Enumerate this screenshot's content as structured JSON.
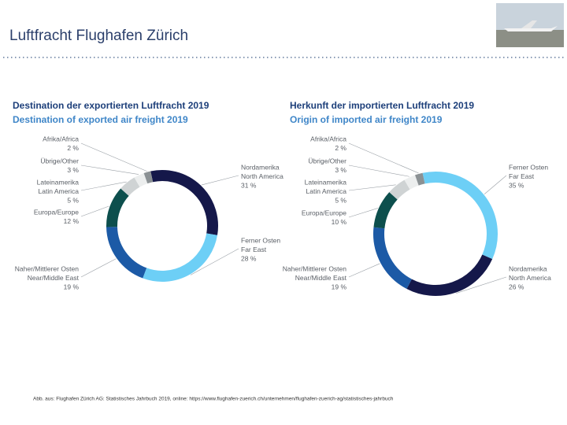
{
  "title": "Luftfracht Flughafen Zürich",
  "source": "Abb. aus: Flughafen Zürich AG: Statistisches Jahrbuch 2019, online: https://www.flughafen-zuerich.ch/unternehmen/flughafen-zuerich-ag/statistisches-jahrbuch",
  "chart_data": [
    {
      "type": "donut",
      "title": "Destination der exportierten Luftfracht 2019",
      "subtitle": "Destination of exported air freight 2019",
      "categories": [
        [
          "Nordamerika",
          "North America"
        ],
        [
          "Ferner Osten",
          "Far East"
        ],
        [
          "Naher/Mittlerer Osten",
          "Near/Middle East"
        ],
        [
          "Europa/Europe"
        ],
        [
          "Lateinamerika",
          "Latin America"
        ],
        [
          "Übrige/Other"
        ],
        [
          "Afrika/Africa"
        ]
      ],
      "values": [
        31,
        28,
        19,
        12,
        5,
        3,
        2
      ],
      "value_labels": [
        "31 %",
        "28 %",
        "19 %",
        "12 %",
        "5 %",
        "3 %",
        "2 %"
      ],
      "colors": [
        "#15184a",
        "#6dcff6",
        "#1c5aa6",
        "#0d4f4d",
        "#cfd3d4",
        "#eceeee",
        "#8b9194"
      ]
    },
    {
      "type": "donut",
      "title": "Herkunft der importierten Luftfracht 2019",
      "subtitle": "Origin of imported air freight 2019",
      "categories": [
        [
          "Ferner Osten",
          "Far East"
        ],
        [
          "Nordamerika",
          "North America"
        ],
        [
          "Naher/Mittlerer Osten",
          "Near/Middle East"
        ],
        [
          "Europa/Europe"
        ],
        [
          "Lateinamerika",
          "Latin America"
        ],
        [
          "Übrige/Other"
        ],
        [
          "Afrika/Africa"
        ]
      ],
      "values": [
        35,
        26,
        19,
        10,
        5,
        3,
        2
      ],
      "value_labels": [
        "35 %",
        "26 %",
        "19 %",
        "10 %",
        "5 %",
        "3 %",
        "2 %"
      ],
      "colors": [
        "#6dcff6",
        "#15184a",
        "#1c5aa6",
        "#0d4f4d",
        "#cfd3d4",
        "#eceeee",
        "#8b9194"
      ]
    }
  ]
}
